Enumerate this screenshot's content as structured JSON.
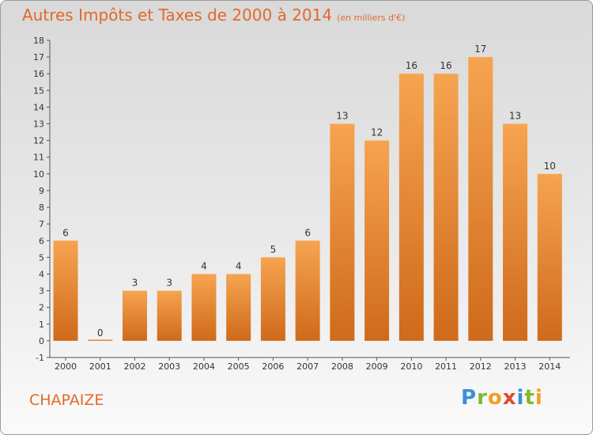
{
  "title": "Autres Impôts et Taxes de 2000 à 2014",
  "unit_label": "(en milliers d'€)",
  "city": "CHAPAIZE",
  "logo": {
    "letters": [
      {
        "ch": "P",
        "color": "#3b8fd6"
      },
      {
        "ch": "r",
        "color": "#7fb935"
      },
      {
        "ch": "o",
        "color": "#f0a020"
      },
      {
        "ch": "x",
        "color": "#e04a2a"
      },
      {
        "ch": "i",
        "color": "#3b8fd6"
      },
      {
        "ch": "t",
        "color": "#7fb935"
      },
      {
        "ch": "i",
        "color": "#f0a020"
      }
    ]
  },
  "colors": {
    "bar_top": "#f6a450",
    "bar_bottom": "#cf6a1a",
    "accent": "#e06a2a"
  },
  "chart_data": {
    "type": "bar",
    "title": "Autres Impôts et Taxes de 2000 à 2014",
    "xlabel": "",
    "ylabel": "",
    "ylim": [
      -1,
      18
    ],
    "yticks": [
      -1,
      0,
      1,
      2,
      3,
      4,
      5,
      6,
      7,
      8,
      9,
      10,
      11,
      12,
      13,
      14,
      15,
      16,
      17,
      18
    ],
    "grid": false,
    "categories": [
      "2000",
      "2001",
      "2002",
      "2003",
      "2004",
      "2005",
      "2006",
      "2007",
      "2008",
      "2009",
      "2010",
      "2011",
      "2012",
      "2013",
      "2014"
    ],
    "values": [
      6,
      0,
      3,
      3,
      4,
      4,
      5,
      6,
      13,
      12,
      16,
      16,
      17,
      13,
      10
    ],
    "data_labels": [
      "6",
      "0",
      "3",
      "3",
      "4",
      "4",
      "5",
      "6",
      "13",
      "12",
      "16",
      "16",
      "17",
      "13",
      "10"
    ]
  }
}
